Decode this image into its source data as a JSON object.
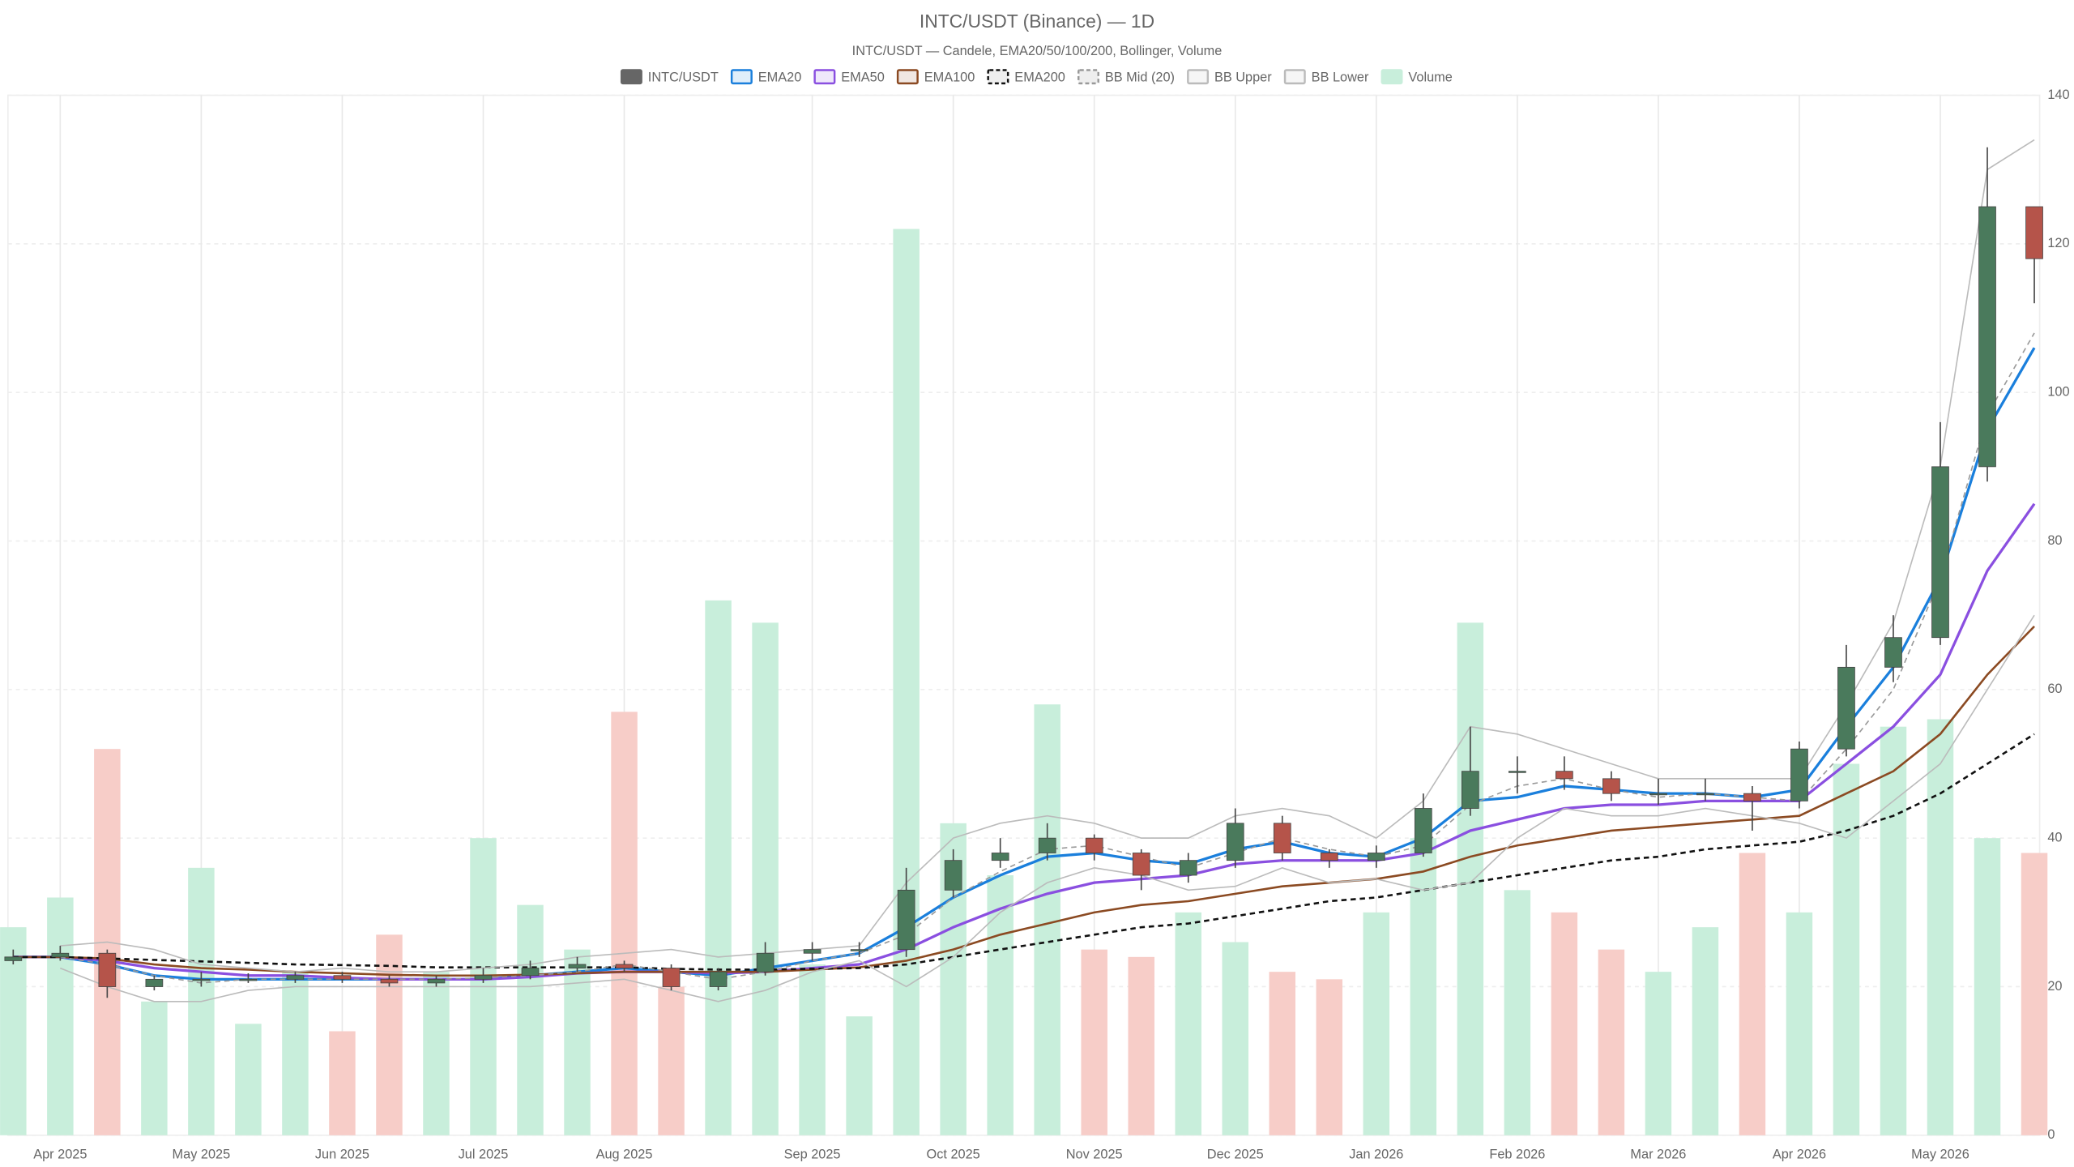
{
  "chart_data": {
    "type": "candlestick",
    "title": "INTC/USDT (Binance) — 1D",
    "subtitle": "INTC/USDT — Candele, EMA20/50/100/200, Bollinger, Volume",
    "categories": [
      null,
      "Apr 2025",
      null,
      null,
      "May 2025",
      null,
      null,
      "Jun 2025",
      null,
      null,
      "Jul 2025",
      null,
      null,
      "Aug 2025",
      null,
      null,
      null,
      "Sep 2025",
      null,
      null,
      "Oct 2025",
      null,
      null,
      "Nov 2025",
      null,
      null,
      "Dec 2025",
      null,
      null,
      "Jan 2026",
      null,
      null,
      "Feb 2026",
      null,
      null,
      "Mar 2026",
      null,
      null,
      "Apr 2026",
      null,
      null,
      "May 2026",
      null,
      null
    ],
    "ylim": [
      0,
      140
    ],
    "yticks": [
      0,
      20,
      40,
      60,
      80,
      100,
      120,
      140
    ],
    "grid": true,
    "candles": {
      "name": "INTC/USDT",
      "color": "#666666",
      "up_color": "#4a7a5c",
      "down_color": "#b5544a",
      "open": [
        23.5,
        24,
        24.5,
        20,
        21,
        21,
        21,
        21.5,
        21,
        20.5,
        21,
        21.5,
        22.5,
        23,
        22.5,
        20,
        22,
        24.5,
        25,
        25,
        33,
        37,
        38,
        40,
        38,
        35,
        37,
        42,
        38,
        37,
        38,
        44,
        49,
        49,
        48,
        46,
        46,
        46,
        45,
        52,
        63,
        67,
        90,
        125
      ],
      "high": [
        25,
        25.5,
        25,
        21.5,
        22,
        21.8,
        22,
        22,
        21.5,
        21.5,
        22.5,
        23.5,
        24,
        23.5,
        23,
        22.5,
        26,
        26,
        26,
        36,
        38.5,
        40,
        42,
        40.5,
        38.5,
        38,
        44,
        43,
        38.5,
        39,
        46,
        55,
        51,
        51,
        49,
        48,
        48,
        47,
        53,
        66,
        70,
        96,
        133,
        125
      ],
      "low": [
        23,
        23.5,
        18.5,
        19.5,
        20,
        20.5,
        20.5,
        20.5,
        20,
        20,
        20.5,
        21,
        22,
        22,
        19.5,
        19.5,
        21.5,
        23.5,
        24,
        24,
        32,
        36,
        37,
        37,
        33,
        34,
        36,
        37,
        36,
        36,
        37.5,
        43,
        46,
        46.5,
        45,
        44.5,
        45,
        41,
        44,
        51,
        61,
        66,
        88,
        112
      ],
      "close": [
        24,
        24.5,
        20,
        21,
        21,
        21,
        21.5,
        21,
        20.5,
        21,
        21.5,
        22.5,
        23,
        22.5,
        20,
        22,
        24.5,
        25,
        25,
        33,
        37,
        38,
        40,
        38,
        35,
        37,
        42,
        38,
        37,
        38,
        44,
        49,
        49,
        48,
        46,
        46,
        46,
        45,
        52,
        63,
        67,
        90,
        125,
        118
      ]
    },
    "series": [
      {
        "name": "EMA20",
        "color": "#1a7fdc",
        "width": 2,
        "dash": false,
        "values": [
          24,
          24,
          23,
          21.5,
          21,
          21,
          21,
          21,
          21,
          21,
          21,
          21.5,
          22,
          22.5,
          22,
          21.5,
          22.5,
          23.5,
          24.5,
          28,
          32,
          35,
          37.5,
          38,
          37,
          36.5,
          38.5,
          39.5,
          38,
          37.5,
          40,
          45,
          45.5,
          47,
          46.5,
          46,
          46,
          45.5,
          46.5,
          55,
          63,
          75,
          95,
          106
        ]
      },
      {
        "name": "EMA50",
        "color": "#8a4fe0",
        "width": 2,
        "dash": false,
        "values": [
          24,
          24,
          23.5,
          22.5,
          22,
          21.5,
          21.5,
          21.2,
          21,
          21,
          21,
          21.3,
          21.8,
          22,
          22,
          21.8,
          22,
          22.5,
          23,
          25,
          28,
          30.5,
          32.5,
          34,
          34.5,
          35,
          36.5,
          37,
          37,
          37,
          38,
          41,
          42.5,
          44,
          44.5,
          44.5,
          45,
          45,
          45,
          50,
          55,
          62,
          76,
          85
        ]
      },
      {
        "name": "EMA100",
        "color": "#8b4a22",
        "width": 1.6,
        "dash": false,
        "values": [
          24,
          24,
          23.8,
          23,
          22.5,
          22.3,
          22,
          21.8,
          21.6,
          21.5,
          21.5,
          21.6,
          21.8,
          22,
          22,
          22,
          22,
          22.3,
          22.6,
          23.5,
          25,
          27,
          28.5,
          30,
          31,
          31.5,
          32.5,
          33.5,
          34,
          34.5,
          35.5,
          37.5,
          39,
          40,
          41,
          41.5,
          42,
          42.5,
          43,
          46,
          49,
          54,
          62,
          68.5
        ]
      },
      {
        "name": "EMA200",
        "color": "#111111",
        "width": 1.6,
        "dash": true,
        "values": [
          24,
          24,
          23.8,
          23.6,
          23.4,
          23.2,
          23,
          22.9,
          22.8,
          22.6,
          22.6,
          22.6,
          22.6,
          22.6,
          22.4,
          22.3,
          22.3,
          22.4,
          22.5,
          23,
          24,
          25,
          26,
          27,
          28,
          28.5,
          29.5,
          30.5,
          31.5,
          32,
          33,
          34,
          35,
          36,
          37,
          37.5,
          38.5,
          39,
          39.5,
          41,
          43,
          46,
          50,
          54
        ]
      },
      {
        "name": "BB Mid (20)",
        "color": "#999999",
        "width": 1,
        "dash": true,
        "values": [
          null,
          24,
          23,
          21.5,
          20.5,
          21,
          21,
          21,
          21,
          21,
          21.2,
          21.5,
          22,
          23,
          22,
          21,
          22,
          23.5,
          24.5,
          27,
          32,
          35.5,
          38.5,
          39,
          37.5,
          36,
          38,
          40,
          38.5,
          37.5,
          39,
          44.5,
          47,
          48,
          46.5,
          45.5,
          46,
          45.5,
          45,
          52,
          60,
          75,
          97,
          108
        ]
      },
      {
        "name": "BB Upper",
        "color": "#bbbbbb",
        "width": 1,
        "dash": false,
        "values": [
          null,
          25.5,
          26,
          25,
          23,
          22.5,
          22,
          22.5,
          22,
          22,
          22.5,
          23,
          24,
          24.5,
          25,
          24,
          24.5,
          25,
          25.5,
          34,
          40,
          42,
          43,
          42,
          40,
          40,
          43,
          44,
          43,
          40,
          45,
          55,
          54,
          52,
          50,
          48,
          48,
          48,
          48,
          58,
          69,
          90,
          130,
          134
        ]
      },
      {
        "name": "BB Lower",
        "color": "#bbbbbb",
        "width": 1,
        "dash": false,
        "values": [
          null,
          22.5,
          20,
          18,
          18,
          19.5,
          20,
          20,
          20,
          20,
          20,
          20,
          20.5,
          21,
          19.5,
          18,
          19.5,
          22,
          23.5,
          20,
          24,
          30,
          34,
          36,
          35,
          33,
          33.5,
          36,
          34,
          34.5,
          33,
          34,
          40,
          44,
          43,
          43,
          44,
          43,
          42,
          40,
          45,
          50,
          60,
          70
        ]
      }
    ],
    "volume": {
      "name": "Volume",
      "color": "#c8eedb",
      "up_color": "#c8eedb",
      "down_color": "#f7cdc8",
      "values": [
        28,
        32,
        52,
        18,
        36,
        15,
        22,
        14,
        27,
        22,
        40,
        31,
        25,
        57,
        20,
        72,
        69,
        23,
        16,
        122,
        42,
        35,
        58,
        25,
        24,
        30,
        26,
        22,
        21,
        30,
        40,
        69,
        33,
        30,
        25,
        22,
        28,
        38,
        30,
        50,
        55,
        56,
        40,
        38
      ]
    }
  }
}
